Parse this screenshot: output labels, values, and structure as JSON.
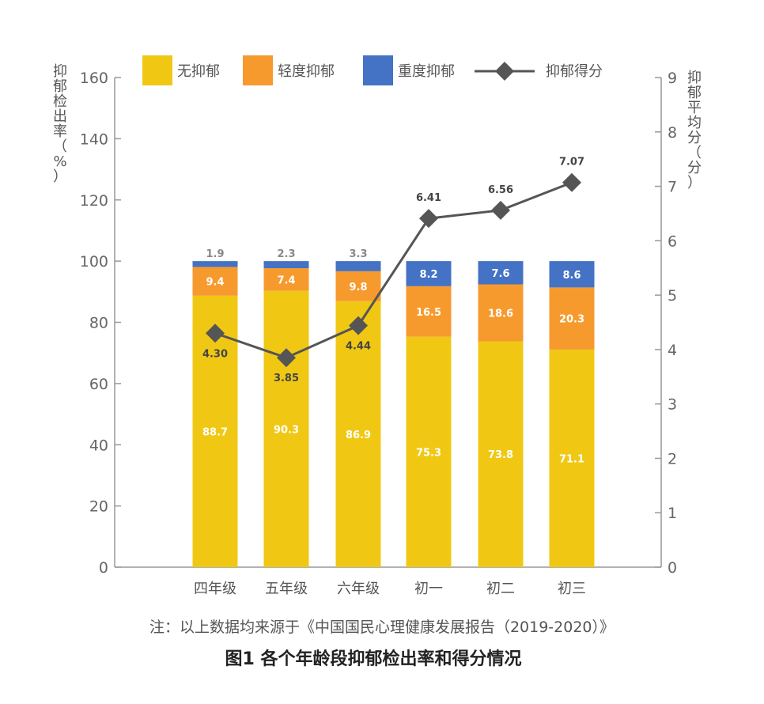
{
  "chart_data": {
    "type": "bar",
    "title": "图1 各个年龄段抑郁检出率和得分情况",
    "note": "注：以上数据均来源于《中国国民心理健康发展报告（2019-2020）》",
    "categories": [
      "四年级",
      "五年级",
      "六年级",
      "初一",
      "初二",
      "初三"
    ],
    "series": [
      {
        "name": "无抑郁",
        "color": "#F0C814",
        "values": [
          88.7,
          90.3,
          86.9,
          75.3,
          73.8,
          71.1
        ]
      },
      {
        "name": "轻度抑郁",
        "color": "#F79A2E",
        "values": [
          9.4,
          7.4,
          9.8,
          16.5,
          18.6,
          20.3
        ]
      },
      {
        "name": "重度抑郁",
        "color": "#4472C4",
        "values": [
          1.9,
          2.3,
          3.3,
          8.2,
          7.6,
          8.6
        ]
      }
    ],
    "line_series": {
      "name": "抑郁得分",
      "color": "#555555",
      "axis": "right",
      "values": [
        4.3,
        3.85,
        4.44,
        6.41,
        6.56,
        7.07
      ],
      "labels": [
        "4.30",
        "3.85",
        "4.44",
        "6.41",
        "6.56",
        "7.07"
      ]
    },
    "ylabel_left": "抑郁检出率（%）",
    "ylabel_right": "抑郁平均分（分）",
    "ylim_left": [
      0,
      160
    ],
    "yticks_left": [
      "0",
      "20",
      "40",
      "60",
      "80",
      "100",
      "120",
      "140",
      "160"
    ],
    "ylim_right": [
      0,
      9
    ],
    "yticks_right": [
      "0",
      "1",
      "2",
      "3",
      "4",
      "5",
      "6",
      "7",
      "8",
      "9"
    ],
    "legend_position": "top",
    "grid": false
  }
}
